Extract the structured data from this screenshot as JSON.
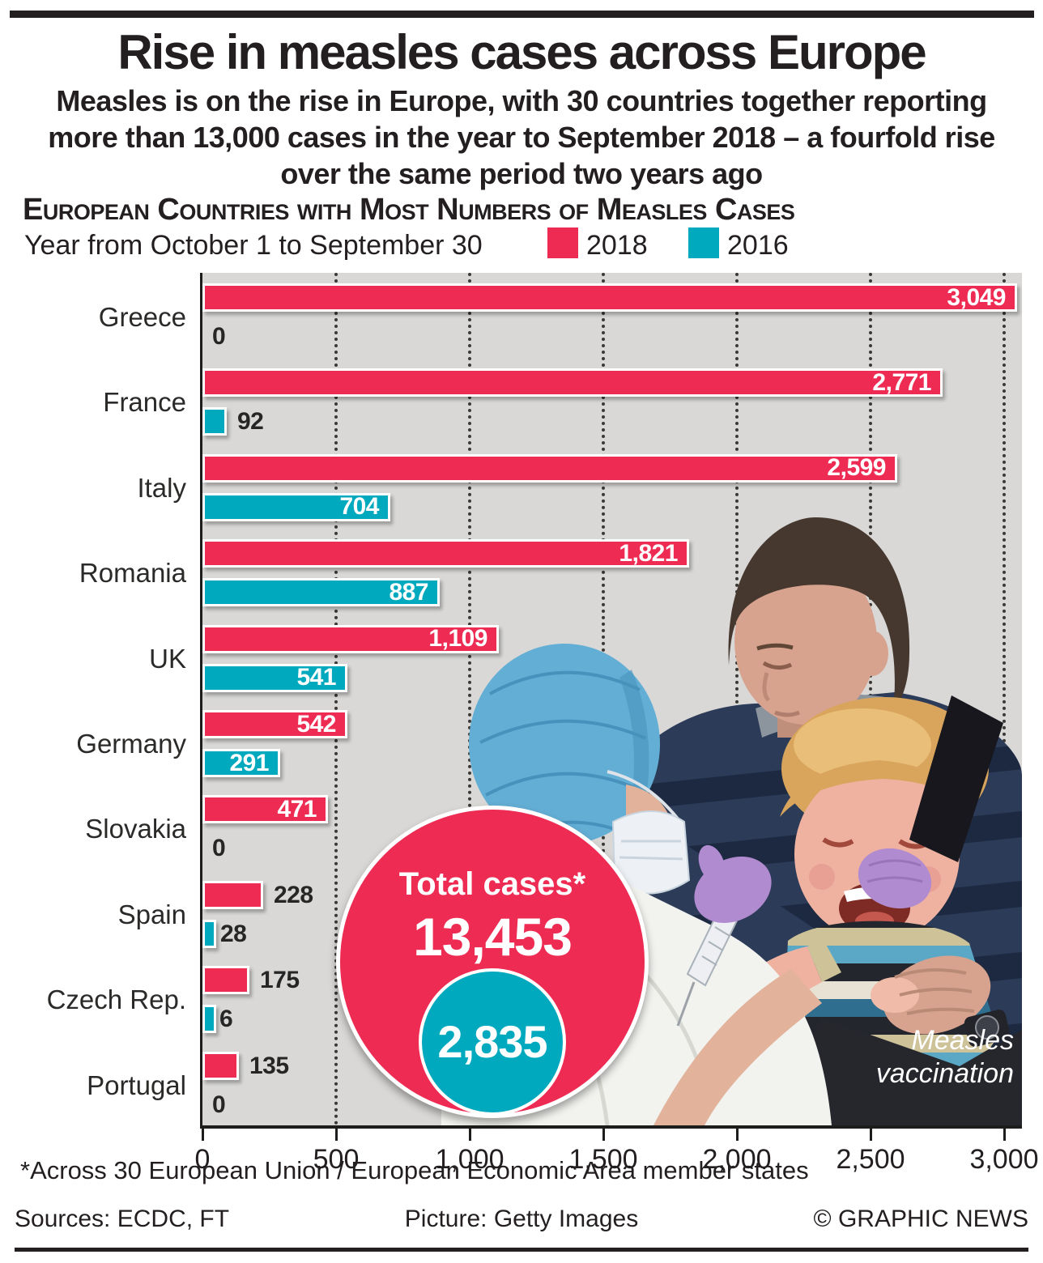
{
  "page": {
    "title": "Rise in measles cases across Europe",
    "subtitle_lines": [
      "Measles is on the rise in Europe, with 30 countries together reporting",
      "more than 13,000 cases in the year to September 2018 – a fourfold rise",
      "over the same period two years ago"
    ],
    "section_heading": "European Countries with Most Numbers of Measles Cases",
    "legend_label": "Year from October 1 to September 30",
    "photo_caption": "Measles vaccination",
    "footnote": "*Across 30 European Union / European Economic Area member states",
    "footer": {
      "sources": "Sources: ECDC, FT",
      "picture": "Picture: Getty Images",
      "copyright": "© GRAPHIC NEWS"
    }
  },
  "colors": {
    "red_2018": "#EE2B53",
    "teal_2016": "#00A9BD",
    "chart_background": "#D9D8D6",
    "text": "#231F20"
  },
  "chart_data": {
    "type": "bar",
    "orientation": "horizontal",
    "title": "European Countries with Most Numbers of Measles Cases",
    "categories": [
      "Greece",
      "France",
      "Italy",
      "Romania",
      "UK",
      "Germany",
      "Slovakia",
      "Spain",
      "Czech Rep.",
      "Portugal"
    ],
    "series": [
      {
        "name": "2018",
        "color": "#EE2B53",
        "values": [
          3049,
          2771,
          2599,
          1821,
          1109,
          542,
          471,
          228,
          175,
          135
        ],
        "labels": [
          "3,049",
          "2,771",
          "2,599",
          "1,821",
          "1,109",
          "542",
          "471",
          "228",
          "175",
          "135"
        ]
      },
      {
        "name": "2016",
        "color": "#00A9BD",
        "values": [
          0,
          92,
          704,
          887,
          541,
          291,
          0,
          28,
          6,
          0
        ],
        "labels": [
          "0",
          "92",
          "704",
          "887",
          "541",
          "291",
          "0",
          "28",
          "6",
          "0"
        ]
      }
    ],
    "x_ticks": [
      0,
      500,
      1000,
      1500,
      2000,
      2500,
      3000
    ],
    "x_tick_labels": [
      "0",
      "500",
      "1,000",
      "1,500",
      "2,000",
      "2,500",
      "3,000"
    ],
    "xlim": [
      0,
      3070
    ],
    "grid": "dotted vertical gridlines at each 500",
    "legend_position": "top",
    "totals": {
      "label": "Total cases*",
      "total_2018": "13,453",
      "total_2016": "2,835"
    }
  }
}
